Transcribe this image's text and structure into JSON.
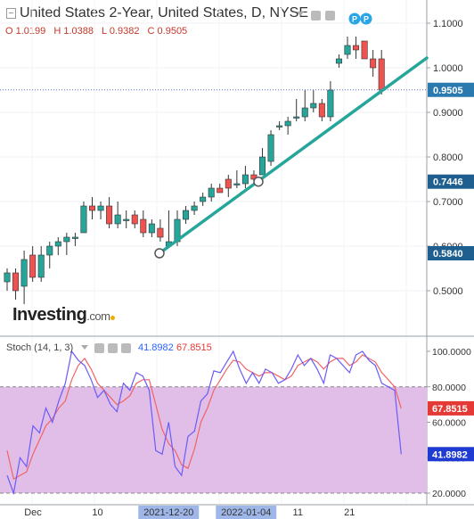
{
  "header": {
    "title": "United States 2-Year, United States, D, NYSE",
    "ohlc": {
      "open": "O 1.0199",
      "high": "H 1.0388",
      "low": "L 0.9382",
      "close": "C 0.9505"
    }
  },
  "logo": {
    "name": "Investing",
    "domain": ".com"
  },
  "indicator": {
    "label": "Stoch (14, 1, 3)",
    "k_value": "41.8982",
    "d_value": "67.8515"
  },
  "colors": {
    "up": "#26a69a",
    "down": "#ef5350",
    "trendline": "#26a69a",
    "stoch_k": "#6a5cf7",
    "stoch_d": "#f06464",
    "band_fill": "#e1bee7",
    "price_marker": "#2a7ab0",
    "k_marker": "#1f3bd1",
    "d_marker": "#e53935"
  },
  "icons": [
    "collapse-icon",
    "settings-icon",
    "eye-icon",
    "pivot-badge-icon"
  ],
  "pivot_badges": [
    "P",
    "P"
  ],
  "chart_data": [
    {
      "type": "candlestick",
      "title": "United States 2-Year, United States, D, NYSE",
      "ylim": [
        0.42,
        1.14
      ],
      "y_ticks": [
        "1.1000",
        "1.0000",
        "0.9000",
        "0.8000",
        "0.7000",
        "0.6000",
        "0.5000"
      ],
      "price_markers": [
        {
          "label": "0.9505",
          "value": 0.9505
        },
        {
          "label": "0.7446",
          "value": 0.7446
        },
        {
          "label": "0.5840",
          "value": 0.584
        }
      ],
      "last_price_line": 0.9505,
      "trendline": {
        "start": 0.584,
        "through": 0.7446,
        "end": 1.022
      },
      "candles": [
        [
          0.52,
          0.55,
          0.5,
          0.54
        ],
        [
          0.54,
          0.55,
          0.48,
          0.5
        ],
        [
          0.51,
          0.59,
          0.47,
          0.57
        ],
        [
          0.58,
          0.6,
          0.52,
          0.53
        ],
        [
          0.53,
          0.6,
          0.52,
          0.58
        ],
        [
          0.58,
          0.61,
          0.55,
          0.6
        ],
        [
          0.6,
          0.62,
          0.58,
          0.61
        ],
        [
          0.61,
          0.63,
          0.58,
          0.62
        ],
        [
          0.62,
          0.63,
          0.6,
          0.62
        ],
        [
          0.63,
          0.7,
          0.63,
          0.69
        ],
        [
          0.69,
          0.71,
          0.66,
          0.68
        ],
        [
          0.68,
          0.7,
          0.66,
          0.69
        ],
        [
          0.69,
          0.71,
          0.64,
          0.65
        ],
        [
          0.65,
          0.7,
          0.64,
          0.67
        ],
        [
          0.66,
          0.68,
          0.64,
          0.66
        ],
        [
          0.67,
          0.68,
          0.64,
          0.65
        ],
        [
          0.66,
          0.68,
          0.62,
          0.63
        ],
        [
          0.63,
          0.66,
          0.62,
          0.65
        ],
        [
          0.64,
          0.66,
          0.61,
          0.62
        ],
        [
          0.6,
          0.68,
          0.6,
          0.61
        ],
        [
          0.61,
          0.68,
          0.6,
          0.66
        ],
        [
          0.66,
          0.69,
          0.65,
          0.68
        ],
        [
          0.68,
          0.7,
          0.67,
          0.69
        ],
        [
          0.7,
          0.72,
          0.69,
          0.71
        ],
        [
          0.71,
          0.74,
          0.7,
          0.73
        ],
        [
          0.73,
          0.74,
          0.72,
          0.72
        ],
        [
          0.75,
          0.76,
          0.71,
          0.73
        ],
        [
          0.74,
          0.77,
          0.73,
          0.74
        ],
        [
          0.74,
          0.78,
          0.73,
          0.76
        ],
        [
          0.76,
          0.77,
          0.74,
          0.75
        ],
        [
          0.76,
          0.82,
          0.76,
          0.8
        ],
        [
          0.79,
          0.86,
          0.78,
          0.85
        ],
        [
          0.87,
          0.88,
          0.86,
          0.87
        ],
        [
          0.87,
          0.89,
          0.85,
          0.88
        ],
        [
          0.89,
          0.93,
          0.88,
          0.89
        ],
        [
          0.89,
          0.95,
          0.88,
          0.91
        ],
        [
          0.91,
          0.95,
          0.9,
          0.92
        ],
        [
          0.92,
          0.93,
          0.88,
          0.89
        ],
        [
          0.89,
          0.97,
          0.88,
          0.95
        ],
        [
          1.01,
          1.03,
          1.0,
          1.02
        ],
        [
          1.03,
          1.07,
          1.02,
          1.05
        ],
        [
          1.05,
          1.07,
          1.02,
          1.04
        ],
        [
          1.06,
          1.06,
          1.02,
          1.02
        ],
        [
          1.02,
          1.04,
          0.98,
          1.0
        ],
        [
          1.02,
          1.04,
          0.94,
          0.95
        ]
      ]
    },
    {
      "type": "line",
      "title": "Stoch (14, 1, 3)",
      "ylim": [
        15,
        102
      ],
      "y_ticks": [
        "100.0000",
        "80.0000",
        "60.0000",
        "40.0000",
        "20.0000"
      ],
      "band": [
        20,
        80
      ],
      "band_lines": [
        80,
        20
      ],
      "x_ticks": [
        {
          "label": "Dec",
          "index": 4,
          "highlight": false
        },
        {
          "label": "10",
          "index": 14,
          "highlight": false
        },
        {
          "label": "2021-12-20",
          "index": 25,
          "highlight": true
        },
        {
          "label": "2022-01-04",
          "index": 37,
          "highlight": true
        },
        {
          "label": "11",
          "index": 45,
          "highlight": false
        },
        {
          "label": "21",
          "index": 53,
          "highlight": false
        }
      ],
      "series": [
        {
          "name": "%K",
          "values": [
            30,
            20,
            40,
            35,
            58,
            54,
            68,
            60,
            72,
            82,
            100,
            95,
            92,
            84,
            74,
            78,
            70,
            66,
            82,
            78,
            88,
            86,
            78,
            44,
            42,
            60,
            35,
            30,
            52,
            55,
            72,
            76,
            89,
            88,
            94,
            100,
            90,
            82,
            88,
            82,
            90,
            88,
            82,
            84,
            90,
            98,
            92,
            96,
            90,
            82,
            98,
            96,
            92,
            88,
            98,
            100,
            95,
            92,
            82,
            80,
            78,
            42
          ]
        },
        {
          "name": "%D",
          "values": [
            44,
            28,
            30,
            32,
            42,
            50,
            58,
            62,
            68,
            72,
            84,
            92,
            96,
            90,
            82,
            78,
            74,
            70,
            72,
            75,
            82,
            84,
            84,
            70,
            56,
            48,
            44,
            36,
            34,
            45,
            60,
            68,
            78,
            84,
            90,
            95,
            94,
            90,
            88,
            86,
            88,
            88,
            86,
            84,
            86,
            92,
            94,
            96,
            94,
            90,
            94,
            96,
            96,
            92,
            94,
            98,
            96,
            94,
            88,
            84,
            80,
            67.85
          ]
        }
      ]
    }
  ]
}
